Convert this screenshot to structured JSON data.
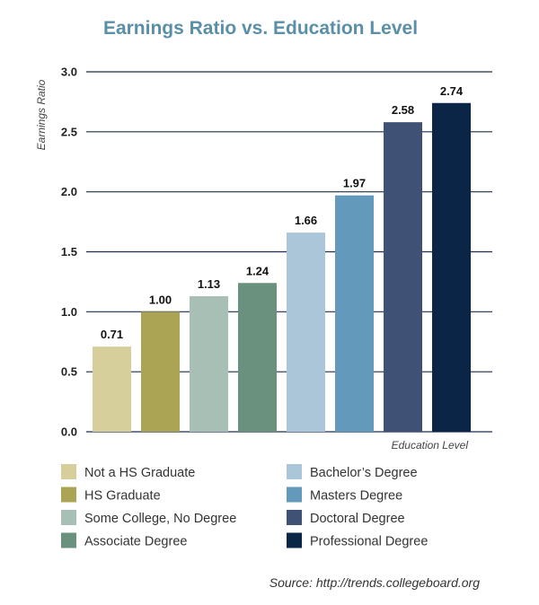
{
  "chart_data": {
    "type": "bar",
    "title": "Earnings Ratio vs. Education Level",
    "ylabel": "Earnings Ratio",
    "xlabel": "Education Level",
    "ylim": [
      0,
      3.0
    ],
    "yticks": [
      "0.0",
      "0.5",
      "1.0",
      "1.5",
      "2.0",
      "2.5",
      "3.0"
    ],
    "grid": true,
    "legend_placement": "bottom",
    "categories": [
      "Not a HS Graduate",
      "HS Graduate",
      "Some College, No Degree",
      "Associate Degree",
      "Bachelor’s Degree",
      "Masters Degree",
      "Doctoral Degree",
      "Professional Degree"
    ],
    "values": [
      0.71,
      1.0,
      1.13,
      1.24,
      1.66,
      1.97,
      2.58,
      2.74
    ],
    "value_labels": [
      "0.71",
      "1.00",
      "1.13",
      "1.24",
      "1.66",
      "1.97",
      "2.58",
      "2.74"
    ],
    "colors": [
      "#d6cf9c",
      "#aca455",
      "#a8bfb5",
      "#6a917d",
      "#aac6d8",
      "#6399bb",
      "#3f5276",
      "#0b2547"
    ]
  },
  "source": "Source: http://trends.collegeboard.org"
}
